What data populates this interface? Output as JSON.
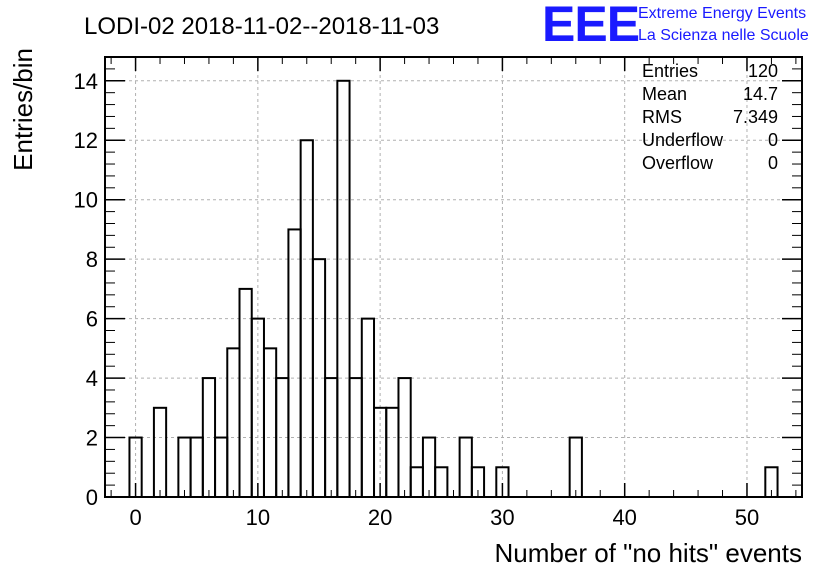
{
  "header": {
    "title": "LODI-02 2018-11-02--2018-11-03",
    "logo_text": "EEE",
    "brand_line1": "Extreme Energy Events",
    "brand_line2": "La Scienza nelle Scuole",
    "brand_color": "#1a1aff"
  },
  "stats_box": {
    "rows": [
      {
        "label": "Entries",
        "value": "120"
      },
      {
        "label": "Mean",
        "value": "14.7"
      },
      {
        "label": "RMS",
        "value": "7.349"
      },
      {
        "label": "Underflow",
        "value": "0"
      },
      {
        "label": "Overflow",
        "value": "0"
      }
    ]
  },
  "chart_data": {
    "type": "bar",
    "style": "step-histogram",
    "xlabel": "Number of \"no hits\" events",
    "ylabel": "Entries/bin",
    "xlim": [
      -2.5,
      54.5
    ],
    "ylim": [
      0,
      14.8
    ],
    "grid": true,
    "x_ticks": [
      0,
      10,
      20,
      30,
      40,
      50
    ],
    "y_ticks": [
      0,
      2,
      4,
      6,
      8,
      10,
      12,
      14
    ],
    "bin_width": 1,
    "bins": [
      {
        "x": 0,
        "count": 2
      },
      {
        "x": 2,
        "count": 3
      },
      {
        "x": 4,
        "count": 2
      },
      {
        "x": 5,
        "count": 2
      },
      {
        "x": 6,
        "count": 4
      },
      {
        "x": 7,
        "count": 2
      },
      {
        "x": 8,
        "count": 5
      },
      {
        "x": 9,
        "count": 7
      },
      {
        "x": 10,
        "count": 6
      },
      {
        "x": 11,
        "count": 5
      },
      {
        "x": 12,
        "count": 4
      },
      {
        "x": 13,
        "count": 9
      },
      {
        "x": 14,
        "count": 12
      },
      {
        "x": 15,
        "count": 8
      },
      {
        "x": 16,
        "count": 4
      },
      {
        "x": 17,
        "count": 14
      },
      {
        "x": 18,
        "count": 4
      },
      {
        "x": 19,
        "count": 6
      },
      {
        "x": 20,
        "count": 3
      },
      {
        "x": 21,
        "count": 3
      },
      {
        "x": 22,
        "count": 4
      },
      {
        "x": 23,
        "count": 1
      },
      {
        "x": 24,
        "count": 2
      },
      {
        "x": 25,
        "count": 1
      },
      {
        "x": 27,
        "count": 2
      },
      {
        "x": 28,
        "count": 1
      },
      {
        "x": 30,
        "count": 1
      },
      {
        "x": 36,
        "count": 2
      },
      {
        "x": 52,
        "count": 1
      }
    ]
  }
}
